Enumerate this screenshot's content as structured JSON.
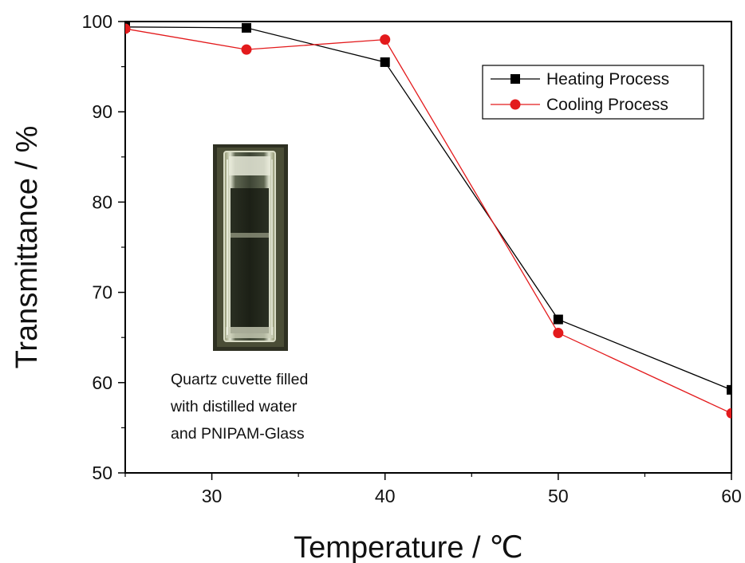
{
  "chart_data": {
    "type": "line",
    "xlabel": "Temperature / ℃",
    "ylabel": "Transmittance / %",
    "xlim": [
      25,
      60
    ],
    "ylim": [
      50,
      100
    ],
    "x_ticks": [
      30,
      40,
      50,
      60
    ],
    "y_ticks": [
      50,
      60,
      70,
      80,
      90,
      100
    ],
    "grid": false,
    "legend_position": "top-right",
    "series": [
      {
        "name": "Heating Process",
        "color": "#000000",
        "marker": "square",
        "x": [
          25,
          32,
          40,
          50,
          60
        ],
        "y": [
          99.4,
          99.3,
          95.5,
          67.0,
          59.2
        ]
      },
      {
        "name": "Cooling Process",
        "color": "#e31a1c",
        "marker": "circle",
        "x": [
          25,
          32,
          40,
          50,
          60
        ],
        "y": [
          99.2,
          96.9,
          98.0,
          65.5,
          56.6
        ]
      }
    ],
    "inset": {
      "caption_lines": [
        "Quartz cuvette filled",
        "with distilled water",
        "and PNIPAM-Glass"
      ]
    }
  }
}
